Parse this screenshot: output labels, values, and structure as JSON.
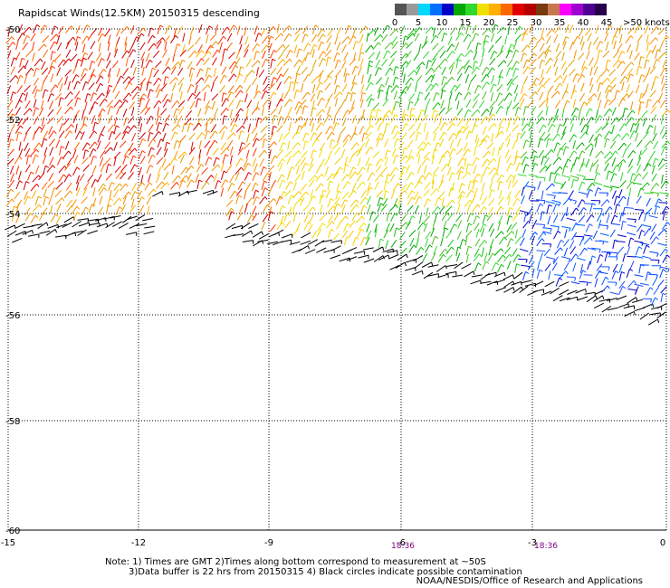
{
  "header": {
    "title": "Rapidscat Winds(12.5KM) 20150315 descending"
  },
  "legend": {
    "unit": ">50 knots",
    "labels": [
      "0",
      "5",
      "10",
      "15",
      "20",
      "25",
      "30",
      "35",
      "40",
      "45"
    ],
    "colors": [
      "#555555",
      "#9a9a9a",
      "#00d8ff",
      "#0070ff",
      "#0000c8",
      "#00a800",
      "#30d830",
      "#f0e000",
      "#ffb000",
      "#ff6800",
      "#e00000",
      "#b40000",
      "#7a3a10",
      "#c87850",
      "#ff00ff",
      "#a000d0",
      "#500090",
      "#28004a"
    ]
  },
  "map": {
    "lat_labels": [
      "-50",
      "-52",
      "-54",
      "-56",
      "-58",
      "-60"
    ],
    "lon_labels": [
      "-15",
      "-12",
      "-9",
      "-6",
      "-3",
      "0"
    ],
    "time_labels": [
      "18:36",
      "18:36"
    ]
  },
  "footer": {
    "note1": "Note: 1) Times are GMT 2)Times along bottom correspond to measurement at ~50S",
    "note2": "3)Data buffer is 22 hrs from 20150315 4) Black circles indicate possible contamination",
    "credit": "NOAA/NESDIS/Office of Research and Applications"
  }
}
